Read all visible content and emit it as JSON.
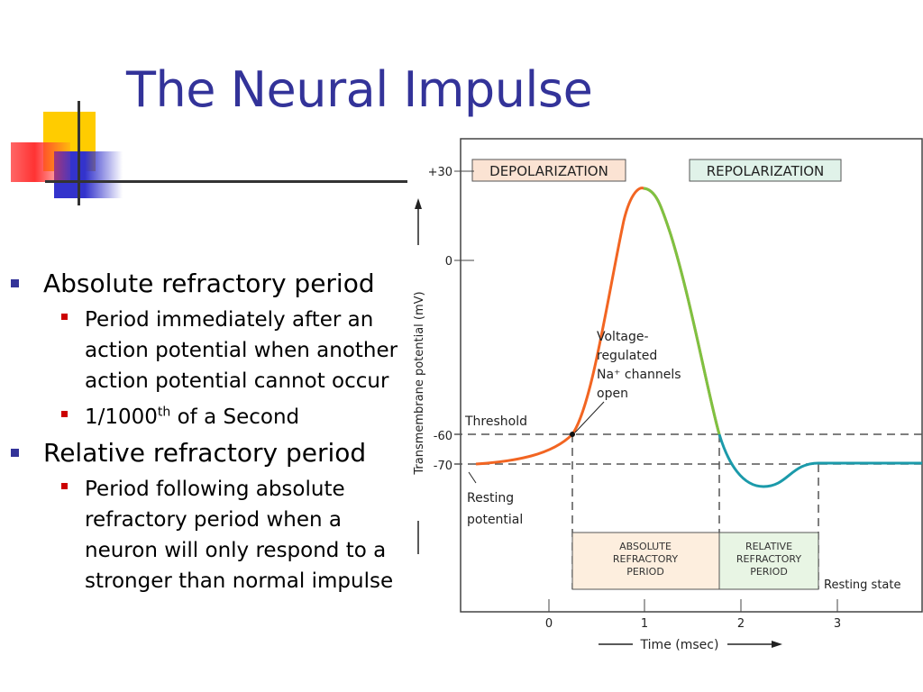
{
  "slide": {
    "title": "The Neural Impulse",
    "colors": {
      "title": "#333399",
      "main_bullet": "#333399",
      "sub_bullet": "#cc0000"
    }
  },
  "bullets": [
    {
      "text": "Absolute refractory period",
      "sub": [
        {
          "text": "Period immediately after an action potential when another action potential cannot occur"
        },
        {
          "text_pre": "1/1000",
          "sup": "th",
          "text_post": " of a Second"
        }
      ]
    },
    {
      "text": "Relative refractory period",
      "sub": [
        {
          "text": "Period following absolute refractory period when a neuron will only respond to a stronger than normal impulse"
        }
      ]
    }
  ],
  "figure": {
    "phase_labels": {
      "depolarization": "DEPOLARIZATION",
      "repolarization": "REPOLARIZATION"
    },
    "y_axis_label": "Transmembrane potential (mV)",
    "x_axis_label": "Time (msec)",
    "y_ticks": [
      "+30",
      "0",
      "-60",
      "-70"
    ],
    "x_ticks": [
      "0",
      "1",
      "2",
      "3"
    ],
    "annotations": {
      "threshold": "Threshold",
      "resting_potential_1": "Resting",
      "resting_potential_2": "potential",
      "channels_1": "Voltage-",
      "channels_2": "regulated",
      "channels_3": "Na⁺ channels",
      "channels_4": "open",
      "resting_state": "Resting state"
    },
    "periods": {
      "absolute_1": "ABSOLUTE",
      "absolute_2": "REFRACTORY",
      "absolute_3": "PERIOD",
      "relative_1": "RELATIVE",
      "relative_2": "REFRACTORY",
      "relative_3": "PERIOD"
    },
    "colors": {
      "depolarization": "#f26522",
      "repolarization": "#7dc242",
      "hyperpolarization": "#1b9aaa"
    }
  }
}
